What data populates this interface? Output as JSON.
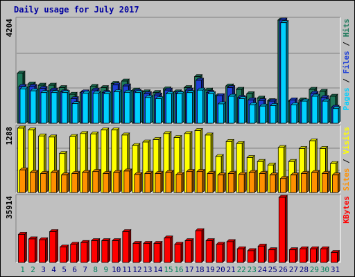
{
  "chart_data": [
    {
      "type": "bar",
      "title": "Daily usage for July 2017",
      "categories": [
        "1",
        "2",
        "3",
        "4",
        "5",
        "6",
        "7",
        "8",
        "9",
        "10",
        "11",
        "12",
        "13",
        "14",
        "15",
        "16",
        "17",
        "18",
        "19",
        "20",
        "21",
        "22",
        "23",
        "24",
        "25",
        "26",
        "27",
        "28",
        "29",
        "30",
        "31"
      ],
      "weekend_days": [
        "1",
        "2",
        "8",
        "9",
        "15",
        "16",
        "22",
        "23",
        "29",
        "30"
      ],
      "ymax_label": "4204",
      "ylim": [
        0,
        4204
      ],
      "legend": [
        "Pages",
        "Files",
        "Hits"
      ],
      "legend_separator": " / ",
      "series": [
        {
          "name": "Hits",
          "color": "#1f7a5c",
          "values": [
            2040,
            1600,
            1550,
            1550,
            1450,
            1180,
            1250,
            1500,
            1450,
            1620,
            1720,
            1350,
            1280,
            1250,
            1400,
            1280,
            1450,
            1900,
            1350,
            1120,
            1520,
            1380,
            1200,
            1020,
            920,
            4204,
            900,
            950,
            1380,
            1300,
            1100
          ]
        },
        {
          "name": "Files",
          "color": "#1e3fd6",
          "values": [
            1500,
            1500,
            1420,
            1350,
            1280,
            1000,
            1280,
            1350,
            1250,
            1560,
            1520,
            1300,
            1200,
            1150,
            1350,
            1230,
            1350,
            1750,
            1250,
            1120,
            1450,
            1050,
            950,
            920,
            900,
            4204,
            950,
            900,
            1220,
            1050,
            650
          ]
        },
        {
          "name": "Pages",
          "color": "#00d0ff",
          "values": [
            1400,
            1320,
            1250,
            1250,
            1250,
            800,
            1220,
            1220,
            1200,
            1280,
            1260,
            1250,
            1050,
            1000,
            1200,
            1200,
            1250,
            1350,
            1200,
            790,
            1100,
            1000,
            750,
            700,
            720,
            4100,
            750,
            900,
            1100,
            900,
            600
          ]
        }
      ]
    },
    {
      "type": "bar",
      "ymax_label": "1288",
      "ylim": [
        0,
        1288
      ],
      "legend": [
        "Sites",
        "Visits"
      ],
      "legend_separator": " / ",
      "series": [
        {
          "name": "Visits",
          "color": "#ffff00",
          "values": [
            1288,
            1250,
            1130,
            1110,
            780,
            1120,
            1180,
            1170,
            1250,
            1250,
            1150,
            940,
            1010,
            1060,
            1180,
            1100,
            1180,
            1240,
            1150,
            720,
            1020,
            980,
            700,
            620,
            550,
            900,
            620,
            880,
            1030,
            880,
            580
          ]
        },
        {
          "name": "Sites",
          "color": "#ff9000",
          "values": [
            450,
            400,
            380,
            400,
            350,
            380,
            400,
            420,
            380,
            400,
            430,
            360,
            380,
            380,
            400,
            360,
            420,
            420,
            380,
            350,
            380,
            360,
            400,
            380,
            350,
            280,
            350,
            380,
            400,
            380,
            350
          ]
        }
      ]
    },
    {
      "type": "bar",
      "ymax_label": "35914",
      "ylim": [
        0,
        35914
      ],
      "legend": [
        "KBytes"
      ],
      "legend_separator": " / ",
      "series": [
        {
          "name": "KBytes",
          "color": "#ff0000",
          "values": [
            15500,
            13000,
            12500,
            17000,
            8500,
            10000,
            11000,
            12000,
            12000,
            12000,
            17000,
            10500,
            10500,
            10500,
            13500,
            10000,
            12000,
            17500,
            12000,
            10000,
            11500,
            7500,
            6500,
            9000,
            7000,
            35914,
            7000,
            7500,
            7500,
            7500,
            5500
          ]
        }
      ]
    }
  ]
}
